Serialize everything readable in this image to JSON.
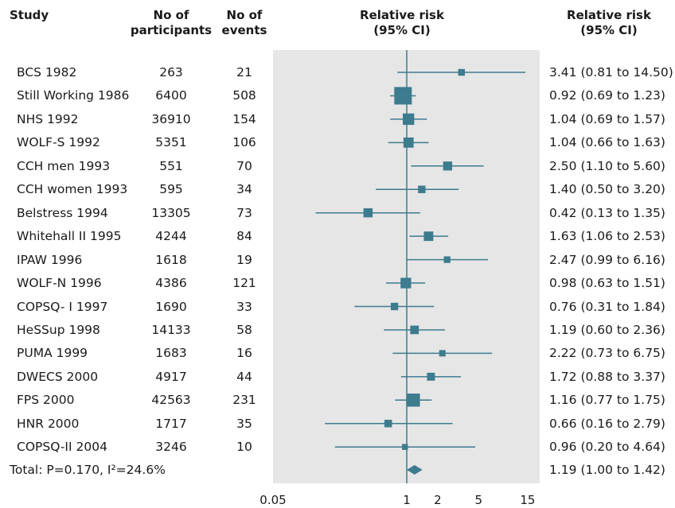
{
  "headers": {
    "study": "Study",
    "participants": "No of participants",
    "participants_l1": "No of",
    "participants_l2": "participants",
    "events_l1": "No of",
    "events_l2": "events",
    "rr_l1": "Relative risk",
    "rr_l2": "(95% CI)",
    "rr_right_l1": "Relative risk",
    "rr_right_l2": "(95% CI)"
  },
  "colors": {
    "marker": "#3d7b8e",
    "plot_bg": "#e6e6e6"
  },
  "chart_data": {
    "type": "forest",
    "x_scale": "log",
    "xlim": [
      0.05,
      15
    ],
    "reference_line": 1,
    "x_ticks": [
      {
        "value": 0.05,
        "label": "0.05"
      },
      {
        "value": 1,
        "label": "1"
      },
      {
        "value": 2,
        "label": "2"
      },
      {
        "value": 5,
        "label": "5"
      },
      {
        "value": 15,
        "label": "15"
      }
    ],
    "studies": [
      {
        "name": "BCS 1982",
        "participants": "263",
        "events": "21",
        "rr": 3.41,
        "lo": 0.81,
        "hi": 14.5,
        "label": "3.41 (0.81 to 14.50)"
      },
      {
        "name": "Still Working 1986",
        "participants": "6400",
        "events": "508",
        "rr": 0.92,
        "lo": 0.69,
        "hi": 1.23,
        "label": "0.92 (0.69 to 1.23)"
      },
      {
        "name": "NHS 1992",
        "participants": "36910",
        "events": "154",
        "rr": 1.04,
        "lo": 0.69,
        "hi": 1.57,
        "label": "1.04 (0.69 to 1.57)"
      },
      {
        "name": "WOLF-S 1992",
        "participants": "5351",
        "events": "106",
        "rr": 1.04,
        "lo": 0.66,
        "hi": 1.63,
        "label": "1.04 (0.66 to 1.63)"
      },
      {
        "name": "CCH men 1993",
        "participants": "551",
        "events": "70",
        "rr": 2.5,
        "lo": 1.1,
        "hi": 5.6,
        "label": "2.50 (1.10 to 5.60)"
      },
      {
        "name": "CCH women 1993",
        "participants": "595",
        "events": "34",
        "rr": 1.4,
        "lo": 0.5,
        "hi": 3.2,
        "label": "1.40 (0.50 to 3.20)"
      },
      {
        "name": "Belstress 1994",
        "participants": "13305",
        "events": "73",
        "rr": 0.42,
        "lo": 0.13,
        "hi": 1.35,
        "label": "0.42 (0.13 to 1.35)"
      },
      {
        "name": "Whitehall II 1995",
        "participants": "4244",
        "events": "84",
        "rr": 1.63,
        "lo": 1.06,
        "hi": 2.53,
        "label": "1.63 (1.06 to 2.53)"
      },
      {
        "name": "IPAW 1996",
        "participants": "1618",
        "events": "19",
        "rr": 2.47,
        "lo": 0.99,
        "hi": 6.16,
        "label": "2.47 (0.99 to 6.16)"
      },
      {
        "name": "WOLF-N 1996",
        "participants": "4386",
        "events": "121",
        "rr": 0.98,
        "lo": 0.63,
        "hi": 1.51,
        "label": "0.98 (0.63 to 1.51)"
      },
      {
        "name": "COPSQ- I 1997",
        "participants": "1690",
        "events": "33",
        "rr": 0.76,
        "lo": 0.31,
        "hi": 1.84,
        "label": "0.76 (0.31 to 1.84)"
      },
      {
        "name": "HeSSup 1998",
        "participants": "14133",
        "events": "58",
        "rr": 1.19,
        "lo": 0.6,
        "hi": 2.36,
        "label": "1.19 (0.60 to 2.36)"
      },
      {
        "name": "PUMA 1999",
        "participants": "1683",
        "events": "16",
        "rr": 2.22,
        "lo": 0.73,
        "hi": 6.75,
        "label": "2.22 (0.73 to 6.75)"
      },
      {
        "name": "DWECS 2000",
        "participants": "4917",
        "events": "44",
        "rr": 1.72,
        "lo": 0.88,
        "hi": 3.37,
        "label": "1.72 (0.88 to 3.37)"
      },
      {
        "name": "FPS 2000",
        "participants": "42563",
        "events": "231",
        "rr": 1.16,
        "lo": 0.77,
        "hi": 1.75,
        "label": "1.16 (0.77 to 1.75)"
      },
      {
        "name": "HNR 2000",
        "participants": "1717",
        "events": "35",
        "rr": 0.66,
        "lo": 0.16,
        "hi": 2.79,
        "label": "0.66 (0.16 to 2.79)"
      },
      {
        "name": "COPSQ-II 2004",
        "participants": "3246",
        "events": "10",
        "rr": 0.96,
        "lo": 0.2,
        "hi": 4.64,
        "label": "0.96 (0.20 to 4.64)"
      }
    ],
    "total": {
      "name": "Total: P=0.170, I²=24.6%",
      "rr": 1.19,
      "lo": 1.0,
      "hi": 1.42,
      "label": "1.19 (1.00 to 1.42)"
    }
  }
}
